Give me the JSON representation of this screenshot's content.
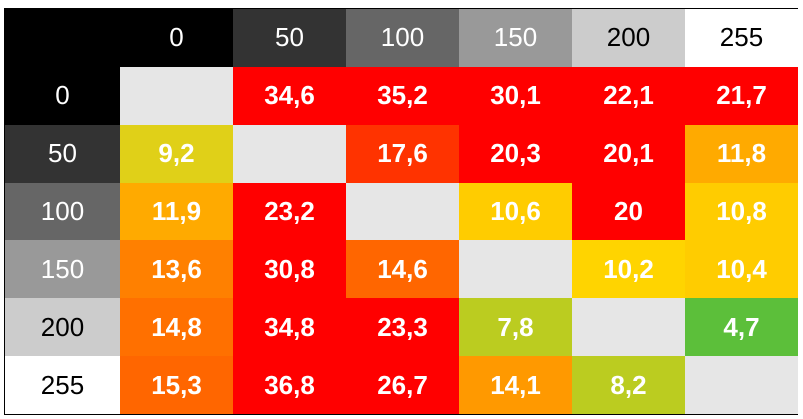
{
  "chart_data": {
    "type": "heatmap",
    "title": "",
    "row_labels": [
      "0",
      "50",
      "100",
      "150",
      "200",
      "255"
    ],
    "col_labels": [
      "0",
      "50",
      "100",
      "150",
      "200",
      "255"
    ],
    "header_colors": [
      "#000000",
      "#333333",
      "#666666",
      "#999999",
      "#cccccc",
      "#ffffff"
    ],
    "header_text_colors": [
      "#ffffff",
      "#ffffff",
      "#ffffff",
      "#ffffff",
      "#000000",
      "#000000"
    ],
    "corner_color": "#000000",
    "empty_color": "#e6e6e6",
    "values": [
      [
        null,
        "34,6",
        "35,2",
        "30,1",
        "22,1",
        "21,7"
      ],
      [
        "9,2",
        null,
        "17,6",
        "20,3",
        "20,1",
        "11,8"
      ],
      [
        "11,9",
        "23,2",
        null,
        "10,6",
        "20",
        "10,8"
      ],
      [
        "13,6",
        "30,8",
        "14,6",
        null,
        "10,2",
        "10,4"
      ],
      [
        "14,8",
        "34,8",
        "23,3",
        "7,8",
        null,
        "4,7"
      ],
      [
        "15,3",
        "36,8",
        "26,7",
        "14,1",
        "8,2",
        null
      ]
    ],
    "cell_colors": [
      [
        "#e6e6e6",
        "#ff0000",
        "#ff0000",
        "#ff0000",
        "#ff0000",
        "#ff0000"
      ],
      [
        "#e0d018",
        "#e6e6e6",
        "#ff3300",
        "#ff0000",
        "#ff0000",
        "#ffaa00"
      ],
      [
        "#ffaa00",
        "#ff0000",
        "#e6e6e6",
        "#ffcc00",
        "#ff0000",
        "#ffcc00"
      ],
      [
        "#ff8000",
        "#ff0000",
        "#ff6600",
        "#e6e6e6",
        "#ffd400",
        "#ffcc00"
      ],
      [
        "#ff7000",
        "#ff0000",
        "#ff0000",
        "#bbcc20",
        "#e6e6e6",
        "#5cbf3a"
      ],
      [
        "#ff6600",
        "#ff0000",
        "#ff0000",
        "#ff9900",
        "#bbcc20",
        "#e6e6e6"
      ]
    ]
  }
}
